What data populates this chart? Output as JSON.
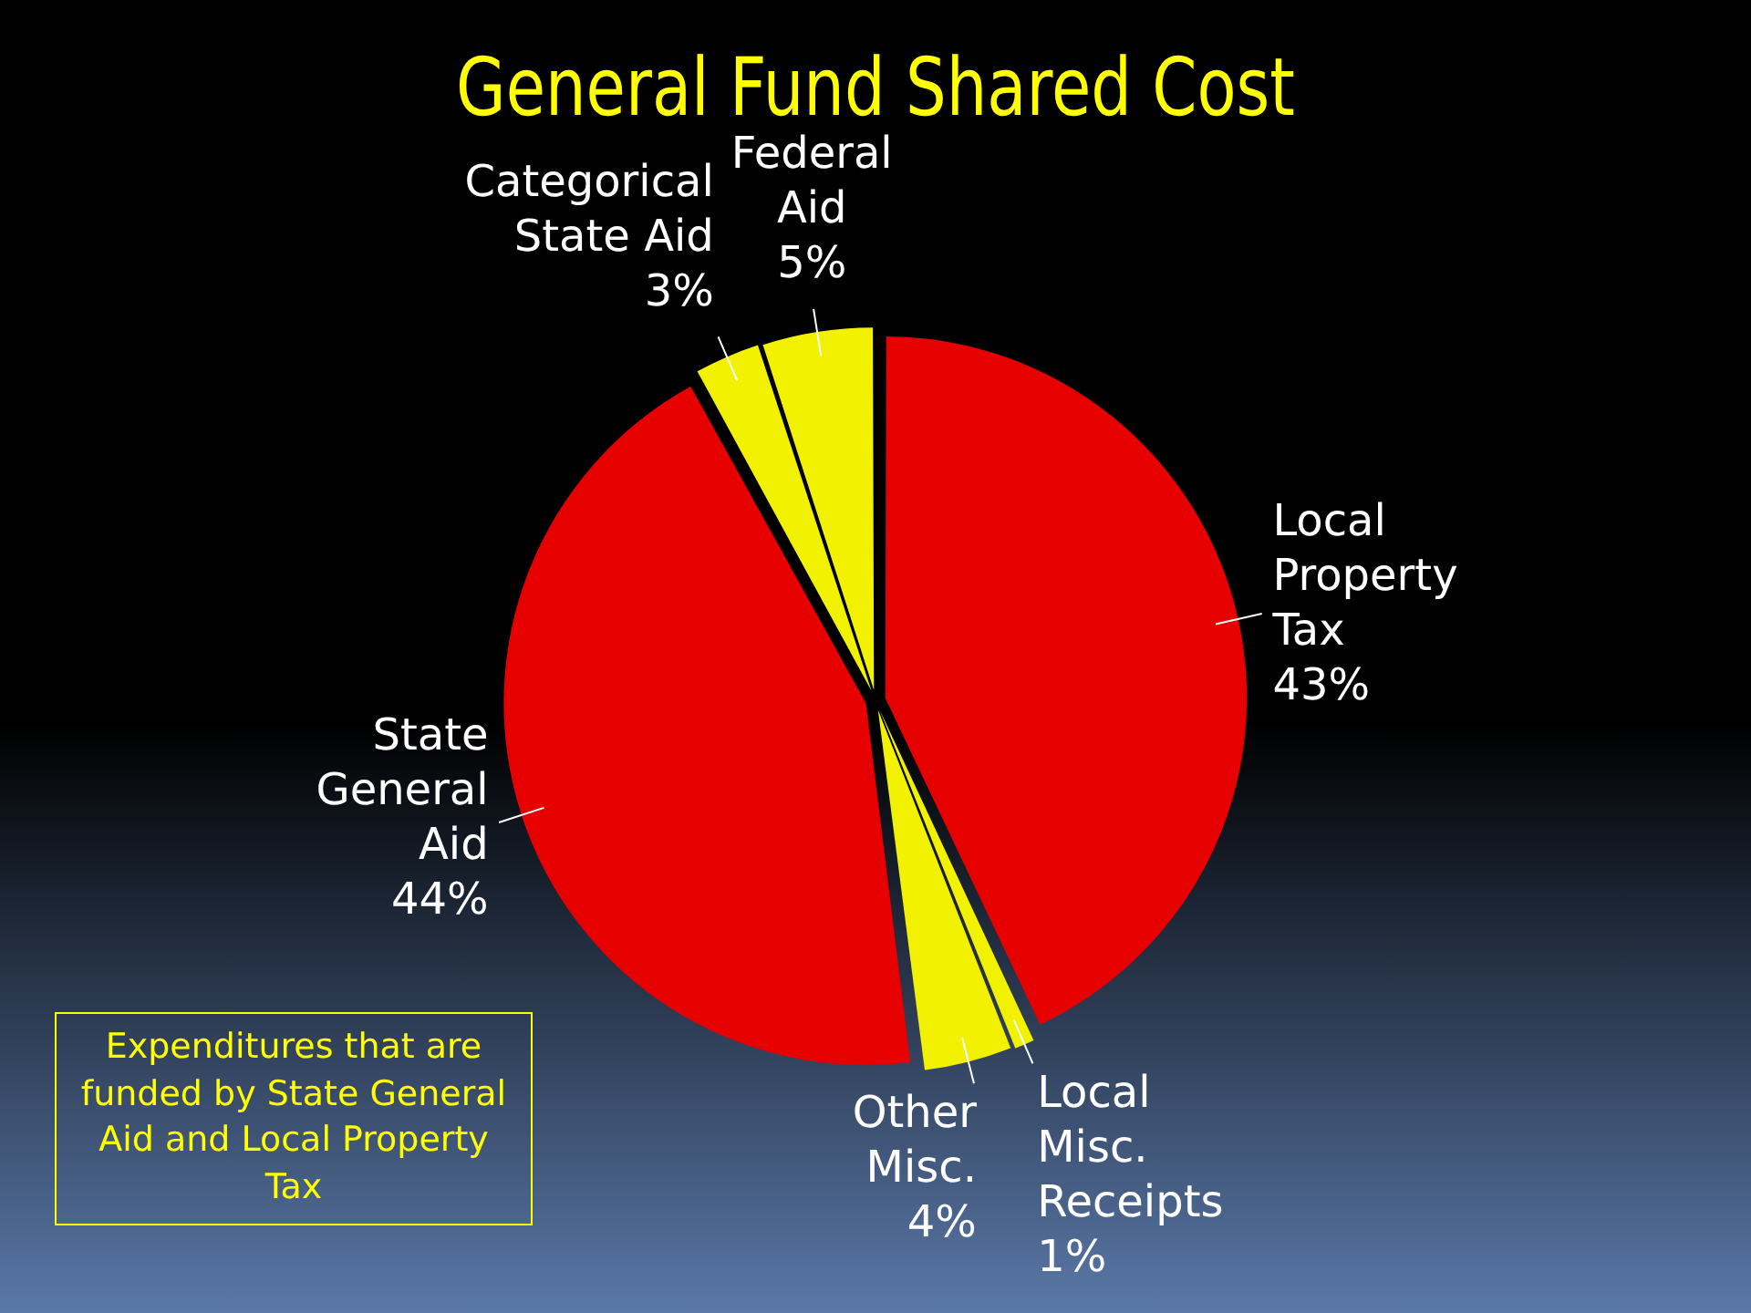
{
  "chart_data": {
    "type": "pie",
    "title": "General Fund Shared Cost",
    "categories": [
      "Local Property Tax",
      "Local Misc. Receipts",
      "Other Misc.",
      "State General Aid",
      "Categorical State Aid",
      "Federal Aid"
    ],
    "values": [
      43,
      1,
      4,
      44,
      3,
      5
    ],
    "colors": [
      "#e60000",
      "#f2f200",
      "#f2f200",
      "#e60000",
      "#f2f200",
      "#f2f200"
    ],
    "value_labels": [
      "43%",
      "1%",
      "4%",
      "44%",
      "3%",
      "5%"
    ],
    "legend": false,
    "annotations": [
      "Expenditures that are funded by State General Aid and Local Property Tax"
    ]
  }
}
